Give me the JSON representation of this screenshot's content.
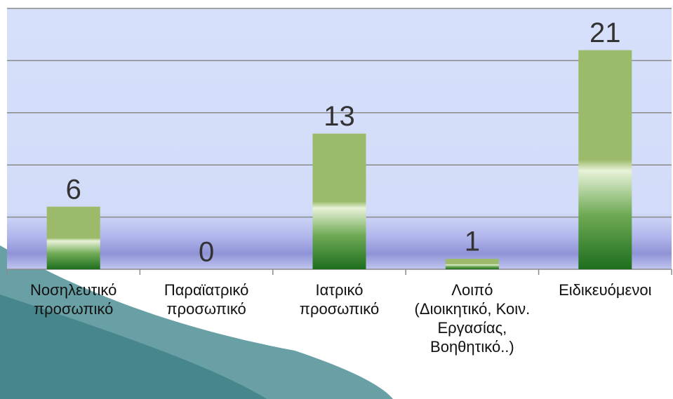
{
  "chart_data": {
    "type": "bar",
    "categories": [
      "Νοσηλευτικό προσωπικό",
      "Παραϊατρικό προσωπικό",
      "Ιατρικό προσωπικό",
      "Λοιπό (Διοικητικό, Κοιν. Εργασίας, Βοηθητικό..)",
      "Ειδικευόμενοι"
    ],
    "values": [
      6,
      0,
      13,
      1,
      21
    ],
    "color": "#9bbb6a",
    "ylim": [
      0,
      25
    ],
    "yticks": [
      0,
      5,
      10,
      15,
      20,
      25
    ],
    "grid": true
  }
}
